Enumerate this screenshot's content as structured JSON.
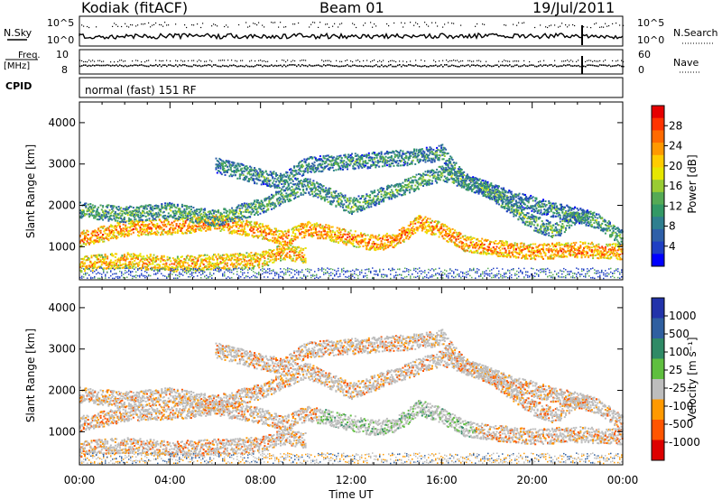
{
  "header": {
    "title": "Kodiak (fitACF)",
    "beam": "Beam 01",
    "date": "19/Jul/2011"
  },
  "top_panels": {
    "nsky_label": "N.Sky",
    "nsearch_label": "N.Search",
    "nsky_ticks": [
      "10^5",
      "10^0"
    ],
    "nsearch_ticks": [
      "10^5",
      "10^0"
    ],
    "freq_label_line1": "Freq.",
    "freq_label_line2": "[MHz]",
    "freq_ticks": [
      "10",
      "8"
    ],
    "nave_label": "Nave",
    "nave_ticks": [
      "60",
      "0"
    ],
    "cpid_label": "CPID",
    "cpid_text": "normal (fast) 151 RF"
  },
  "power_colorbar": {
    "label": "Power [dB]",
    "ticks": [
      "28",
      "24",
      "20",
      "16",
      "12",
      "8",
      "4"
    ],
    "colors": [
      "#e60000",
      "#ff3300",
      "#ff6a00",
      "#ff9900",
      "#ffcc00",
      "#e6e600",
      "#99cc33",
      "#55aa55",
      "#339966",
      "#2f7f8f",
      "#2e5fa8",
      "#1f3fc4",
      "#0000ff"
    ]
  },
  "velocity_colorbar": {
    "label": "Velocity [m s⁻¹]",
    "ticks": [
      "1000",
      "500",
      "100",
      "25",
      "-25",
      "-100",
      "-500",
      "-1000"
    ],
    "colors": [
      "#2233aa",
      "#2f5fa0",
      "#2f8a66",
      "#5fbf3f",
      "#bdbdbd",
      "#ff9900",
      "#ff5500",
      "#dd0000"
    ]
  },
  "chart_data": [
    {
      "type": "heatmap",
      "panel": "power",
      "title": "Beam 01",
      "ylabel": "Slant Range [km]",
      "xlabel": "Time UT",
      "x_ticks": [
        "00:00",
        "04:00",
        "08:00",
        "12:00",
        "16:00",
        "20:00",
        "00:00"
      ],
      "y_ticks": [
        1000,
        2000,
        3000,
        4000
      ],
      "ylim": [
        200,
        4500
      ],
      "xlim_hours": [
        0,
        24
      ],
      "scatter_bands": [
        {
          "name": "lower",
          "points": [
            [
              0,
              600
            ],
            [
              2,
              700
            ],
            [
              4,
              600
            ],
            [
              6,
              650
            ],
            [
              8,
              700
            ],
            [
              9,
              900
            ],
            [
              10,
              800
            ]
          ],
          "power": 22
        },
        {
          "name": "main",
          "points": [
            [
              0,
              1200
            ],
            [
              2,
              1450
            ],
            [
              4,
              1500
            ],
            [
              6,
              1600
            ],
            [
              8,
              1400
            ],
            [
              9,
              1200
            ],
            [
              10,
              1450
            ],
            [
              11,
              1350
            ],
            [
              13,
              1100
            ],
            [
              14,
              1200
            ],
            [
              15,
              1600
            ],
            [
              16,
              1400
            ],
            [
              17,
              1100
            ],
            [
              18,
              1000
            ],
            [
              20,
              900
            ],
            [
              22,
              950
            ],
            [
              24,
              900
            ]
          ],
          "power": 24
        },
        {
          "name": "upper",
          "points": [
            [
              0,
              1900
            ],
            [
              2,
              1800
            ],
            [
              4,
              1900
            ],
            [
              6,
              1700
            ],
            [
              8,
              2000
            ],
            [
              10,
              2500
            ],
            [
              12,
              2000
            ],
            [
              14,
              2400
            ],
            [
              16,
              2800
            ],
            [
              18,
              2400
            ],
            [
              20,
              1600
            ],
            [
              21,
              1400
            ],
            [
              22,
              1800
            ],
            [
              23,
              1600
            ],
            [
              24,
              1200
            ]
          ],
          "power": 12
        },
        {
          "name": "far",
          "points": [
            [
              6,
              3000
            ],
            [
              8,
              2700
            ],
            [
              9,
              2600
            ],
            [
              10,
              3000
            ],
            [
              15,
              3200
            ],
            [
              16,
              3300
            ],
            [
              17,
              2600
            ],
            [
              19,
              2200
            ],
            [
              21,
              1900
            ],
            [
              22.5,
              1700
            ]
          ],
          "power": 10
        }
      ]
    },
    {
      "type": "heatmap",
      "panel": "velocity",
      "ylabel": "Slant Range [km]",
      "xlabel": "Time UT",
      "x_ticks": [
        "00:00",
        "04:00",
        "08:00",
        "12:00",
        "16:00",
        "20:00",
        "00:00"
      ],
      "y_ticks": [
        1000,
        2000,
        3000,
        4000
      ],
      "ylim": [
        200,
        4500
      ],
      "xlim_hours": [
        0,
        24
      ]
    }
  ],
  "time_axis": {
    "ticks": [
      "00:00",
      "04:00",
      "08:00",
      "12:00",
      "16:00",
      "20:00",
      "00:00"
    ],
    "label": "Time UT"
  },
  "panel_axes": {
    "ylabel": "Slant Range [km]",
    "y_ticks": [
      "1000",
      "2000",
      "3000",
      "4000"
    ]
  }
}
